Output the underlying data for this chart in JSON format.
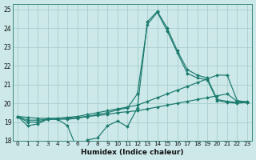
{
  "xlabel": "Humidex (Indice chaleur)",
  "bg_color": "#cce8e8",
  "grid_color": "#aacece",
  "line_color": "#1a7a6e",
  "xlim": [
    -0.5,
    23.5
  ],
  "ylim": [
    18,
    25.3
  ],
  "xticks": [
    0,
    1,
    2,
    3,
    4,
    5,
    6,
    7,
    8,
    9,
    10,
    11,
    12,
    13,
    14,
    15,
    16,
    17,
    18,
    19,
    20,
    21,
    22,
    23
  ],
  "yticks": [
    18,
    19,
    20,
    21,
    22,
    23,
    24,
    25
  ],
  "series": [
    {
      "x": [
        0,
        1,
        2,
        3,
        4,
        5,
        6,
        7,
        8,
        9,
        10,
        11,
        12,
        13,
        14,
        15,
        16,
        17,
        18,
        19,
        20,
        21,
        22,
        23
      ],
      "y": [
        19.3,
        18.8,
        18.9,
        19.15,
        19.15,
        18.8,
        17.5,
        18.05,
        18.15,
        18.8,
        19.05,
        18.75,
        19.75,
        24.35,
        24.9,
        24.0,
        22.8,
        21.8,
        21.5,
        21.35,
        20.2,
        20.1,
        20.05,
        20.1
      ]
    },
    {
      "x": [
        0,
        1,
        2,
        3,
        4,
        5,
        6,
        7,
        8,
        9,
        10,
        11,
        12,
        13,
        14,
        15,
        16,
        17,
        18,
        19,
        20,
        21,
        22,
        23
      ],
      "y": [
        19.3,
        19.1,
        19.1,
        19.15,
        19.2,
        19.25,
        19.3,
        19.4,
        19.5,
        19.6,
        19.7,
        19.8,
        19.9,
        20.1,
        20.3,
        20.5,
        20.7,
        20.9,
        21.1,
        21.3,
        21.5,
        21.5,
        20.15,
        20.05
      ]
    },
    {
      "x": [
        0,
        1,
        2,
        3,
        4,
        5,
        6,
        7,
        8,
        9,
        10,
        11,
        12,
        13,
        14,
        15,
        16,
        17,
        18,
        19,
        20,
        21,
        22,
        23
      ],
      "y": [
        19.3,
        19.25,
        19.2,
        19.2,
        19.2,
        19.2,
        19.25,
        19.3,
        19.35,
        19.4,
        19.5,
        19.55,
        19.6,
        19.7,
        19.8,
        19.9,
        20.0,
        20.1,
        20.2,
        20.3,
        20.4,
        20.5,
        20.1,
        20.05
      ]
    },
    {
      "x": [
        0,
        1,
        2,
        3,
        4,
        5,
        6,
        7,
        8,
        9,
        10,
        11,
        12,
        13,
        14,
        15,
        16,
        17,
        18,
        19,
        20,
        21,
        22,
        23
      ],
      "y": [
        19.3,
        19.0,
        19.0,
        19.15,
        19.15,
        19.15,
        19.2,
        19.3,
        19.4,
        19.5,
        19.65,
        19.75,
        20.5,
        24.2,
        24.85,
        23.85,
        22.7,
        21.6,
        21.35,
        21.25,
        20.15,
        20.05,
        20.0,
        20.05
      ]
    }
  ]
}
